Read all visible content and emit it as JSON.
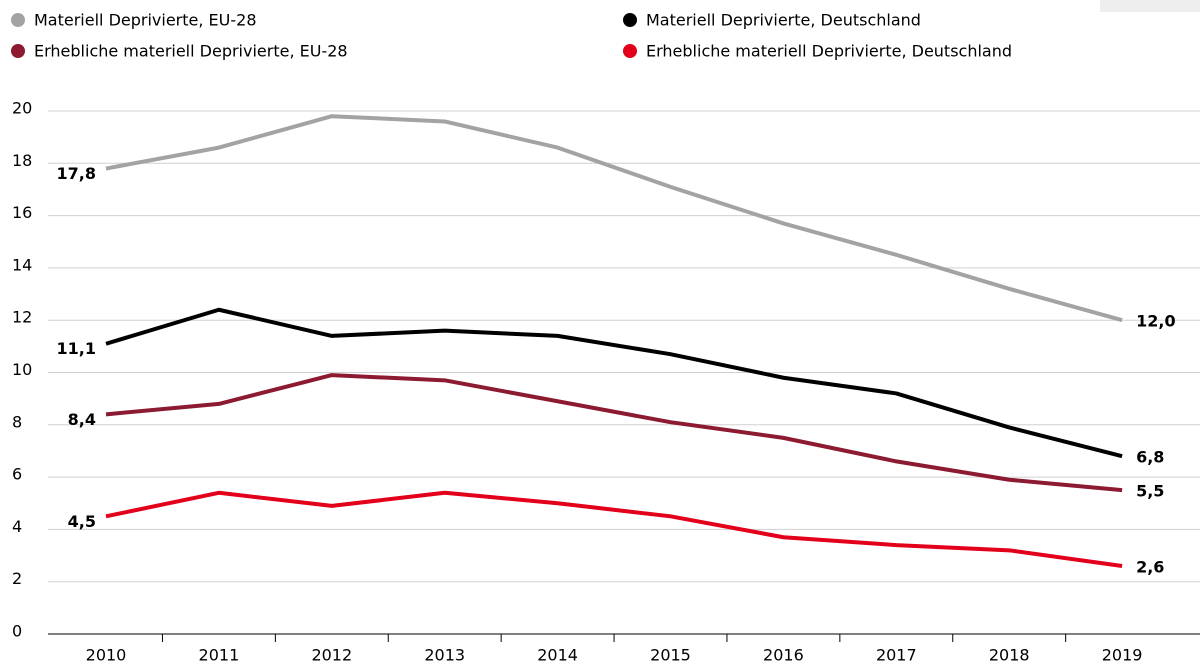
{
  "chart_data": {
    "type": "line",
    "categories": [
      "2010",
      "2011",
      "2012",
      "2013",
      "2014",
      "2015",
      "2016",
      "2017",
      "2018",
      "2019"
    ],
    "series": [
      {
        "name": "Materiell Deprivierte, EU-28",
        "color": "#a3a3a3",
        "values": [
          17.8,
          18.6,
          19.8,
          19.6,
          18.6,
          17.1,
          15.7,
          14.5,
          13.2,
          12.0
        ],
        "value_labels": [
          "17,8",
          null,
          null,
          null,
          null,
          null,
          null,
          null,
          null,
          "12,0"
        ]
      },
      {
        "name": "Materiell Deprivierte, Deutschland",
        "color": "#000000",
        "values": [
          11.1,
          12.4,
          11.4,
          11.6,
          11.4,
          10.7,
          9.8,
          9.2,
          7.9,
          6.8
        ],
        "value_labels": [
          "11,1",
          null,
          null,
          null,
          null,
          null,
          null,
          null,
          null,
          "6,8"
        ]
      },
      {
        "name": "Erhebliche materiell Deprivierte, EU-28",
        "color": "#8c1a30",
        "values": [
          8.4,
          8.8,
          9.9,
          9.7,
          8.9,
          8.1,
          7.5,
          6.6,
          5.9,
          5.5
        ],
        "value_labels": [
          "8,4",
          null,
          null,
          null,
          null,
          null,
          null,
          null,
          null,
          "5,5"
        ]
      },
      {
        "name": "Erhebliche materiell Deprivierte, Deutschland",
        "color": "#e3001b",
        "values": [
          4.5,
          5.4,
          4.9,
          5.4,
          5.0,
          4.5,
          3.7,
          3.4,
          3.2,
          2.6
        ],
        "value_labels": [
          "4,5",
          null,
          null,
          null,
          null,
          null,
          null,
          null,
          null,
          "2,6"
        ]
      }
    ],
    "ylim": [
      0,
      20
    ],
    "yticks": [
      0,
      2,
      4,
      6,
      8,
      10,
      12,
      14,
      16,
      18,
      20
    ],
    "grid": true
  }
}
